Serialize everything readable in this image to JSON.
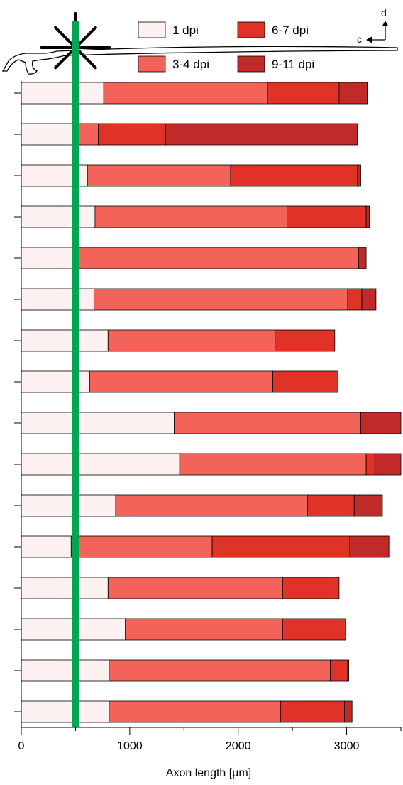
{
  "chart_data": {
    "type": "bar",
    "orientation": "horizontal",
    "stacked": true,
    "xlabel": "Axon length [µm]",
    "ylabel": "",
    "xlim": [
      0,
      3500
    ],
    "xticks": [
      0,
      1000,
      2000,
      3000
    ],
    "xtick_labels": [
      "0",
      "1000",
      "2000",
      "3000"
    ],
    "grid": false,
    "legend_position": "top",
    "legend": [
      {
        "label": "1 dpi",
        "color": "#fcf0f1"
      },
      {
        "label": "3-4 dpi",
        "color": "#f36359"
      },
      {
        "label": "6-7 dpi",
        "color": "#e03226"
      },
      {
        "label": "9-11 dpi",
        "color": "#c02a28"
      }
    ],
    "orientation_labels": {
      "dorsal": "d",
      "caudal": "c"
    },
    "marker_line_x": 500,
    "marker_line_color": "#00a651",
    "rows": [
      {
        "values": [
          760,
          1510,
          660,
          260
        ]
      },
      {
        "values": [
          470,
          240,
          620,
          1770
        ]
      },
      {
        "values": [
          610,
          1320,
          1170,
          30
        ]
      },
      {
        "values": [
          680,
          1770,
          730,
          30
        ]
      },
      {
        "values": [
          490,
          2620,
          0,
          70
        ]
      },
      {
        "values": [
          670,
          2340,
          130,
          130
        ]
      },
      {
        "values": [
          800,
          1540,
          550,
          0
        ]
      },
      {
        "values": [
          630,
          1690,
          600,
          0
        ]
      },
      {
        "values": [
          1410,
          1720,
          0,
          370
        ]
      },
      {
        "values": [
          1460,
          1720,
          80,
          240
        ]
      },
      {
        "values": [
          870,
          1770,
          430,
          260
        ]
      },
      {
        "values": [
          460,
          1300,
          1270,
          360
        ]
      },
      {
        "values": [
          800,
          1610,
          520,
          0
        ]
      },
      {
        "values": [
          960,
          1450,
          580,
          0
        ]
      },
      {
        "values": [
          810,
          2040,
          160,
          10
        ]
      },
      {
        "values": [
          810,
          1580,
          590,
          70
        ]
      }
    ]
  }
}
